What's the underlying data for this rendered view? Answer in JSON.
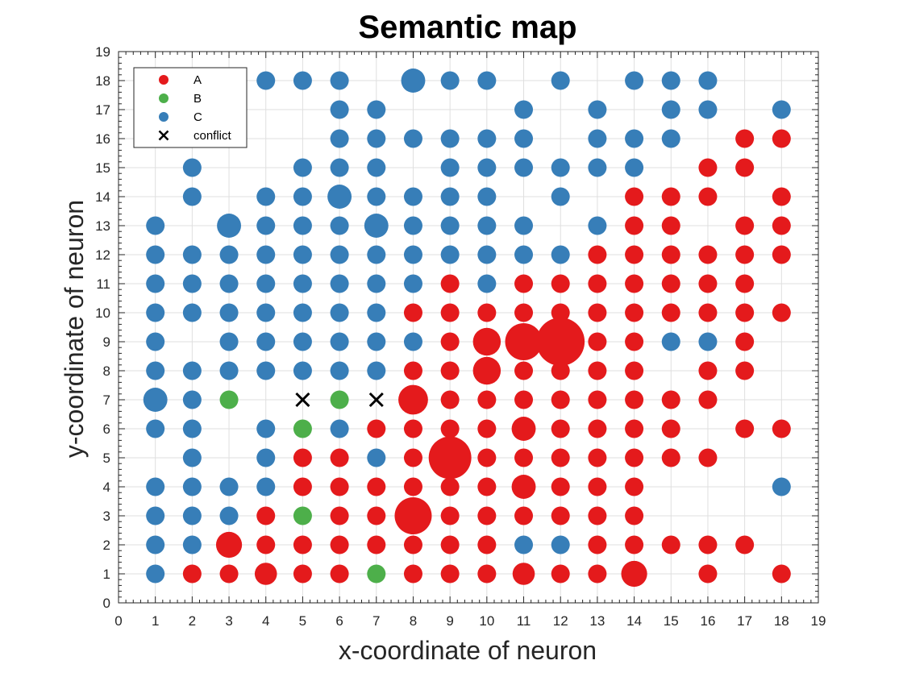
{
  "chart_data": {
    "type": "scatter",
    "title": "Semantic map",
    "xlabel": "x-coordinate of neuron",
    "ylabel": "y-coordinate of neuron",
    "xlim": [
      0,
      19
    ],
    "ylim": [
      0,
      19
    ],
    "xticks": [
      "0",
      "1",
      "2",
      "3",
      "4",
      "5",
      "6",
      "7",
      "8",
      "9",
      "10",
      "11",
      "12",
      "13",
      "14",
      "15",
      "16",
      "17",
      "18",
      "19"
    ],
    "yticks": [
      "0",
      "1",
      "2",
      "3",
      "4",
      "5",
      "6",
      "7",
      "8",
      "9",
      "10",
      "11",
      "12",
      "13",
      "14",
      "15",
      "16",
      "17",
      "18",
      "19"
    ],
    "grid": true,
    "legend_position": "top-left",
    "colors": {
      "A": "#e41a1c",
      "B": "#4daf4a",
      "C": "#377eb8",
      "conflict": "#000000"
    },
    "legend": [
      "A",
      "B",
      "C",
      "conflict"
    ],
    "series": [
      {
        "name": "A",
        "points": [
          [
            17,
            16,
            1
          ],
          [
            18,
            16,
            1
          ],
          [
            16,
            15,
            1
          ],
          [
            17,
            15,
            1
          ],
          [
            14,
            14,
            1
          ],
          [
            15,
            14,
            1
          ],
          [
            16,
            14,
            1
          ],
          [
            18,
            14,
            1
          ],
          [
            14,
            13,
            1
          ],
          [
            15,
            13,
            1
          ],
          [
            17,
            13,
            1
          ],
          [
            18,
            13,
            1
          ],
          [
            13,
            12,
            1
          ],
          [
            14,
            12,
            1
          ],
          [
            15,
            12,
            1
          ],
          [
            16,
            12,
            1
          ],
          [
            17,
            12,
            1
          ],
          [
            18,
            12,
            1
          ],
          [
            9,
            11,
            1
          ],
          [
            11,
            11,
            1
          ],
          [
            12,
            11,
            1
          ],
          [
            13,
            11,
            1
          ],
          [
            14,
            11,
            1
          ],
          [
            15,
            11,
            1
          ],
          [
            16,
            11,
            1
          ],
          [
            17,
            11,
            1
          ],
          [
            8,
            10,
            1
          ],
          [
            9,
            10,
            1
          ],
          [
            10,
            10,
            1
          ],
          [
            11,
            10,
            1
          ],
          [
            12,
            10,
            1
          ],
          [
            13,
            10,
            1
          ],
          [
            14,
            10,
            1
          ],
          [
            15,
            10,
            1
          ],
          [
            16,
            10,
            1
          ],
          [
            17,
            10,
            1
          ],
          [
            18,
            10,
            1
          ],
          [
            9,
            9,
            1
          ],
          [
            10,
            9,
            1.5
          ],
          [
            11,
            9,
            2
          ],
          [
            12,
            9,
            2.6
          ],
          [
            13,
            9,
            1
          ],
          [
            14,
            9,
            1
          ],
          [
            17,
            9,
            1
          ],
          [
            8,
            8,
            1
          ],
          [
            9,
            8,
            1
          ],
          [
            10,
            8,
            1.5
          ],
          [
            11,
            8,
            1
          ],
          [
            12,
            8,
            1
          ],
          [
            13,
            8,
            1
          ],
          [
            14,
            8,
            1
          ],
          [
            16,
            8,
            1
          ],
          [
            17,
            8,
            1
          ],
          [
            8,
            7,
            1.6
          ],
          [
            9,
            7,
            1
          ],
          [
            10,
            7,
            1
          ],
          [
            11,
            7,
            1
          ],
          [
            12,
            7,
            1
          ],
          [
            13,
            7,
            1
          ],
          [
            14,
            7,
            1
          ],
          [
            15,
            7,
            1
          ],
          [
            16,
            7,
            1
          ],
          [
            7,
            6,
            1
          ],
          [
            8,
            6,
            1
          ],
          [
            9,
            6,
            1
          ],
          [
            10,
            6,
            1
          ],
          [
            11,
            6,
            1.3
          ],
          [
            12,
            6,
            1
          ],
          [
            13,
            6,
            1
          ],
          [
            14,
            6,
            1
          ],
          [
            15,
            6,
            1
          ],
          [
            17,
            6,
            1
          ],
          [
            18,
            6,
            1
          ],
          [
            5,
            5,
            1
          ],
          [
            6,
            5,
            1
          ],
          [
            8,
            5,
            1
          ],
          [
            9,
            5,
            2.3
          ],
          [
            10,
            5,
            1
          ],
          [
            11,
            5,
            1
          ],
          [
            12,
            5,
            1
          ],
          [
            13,
            5,
            1
          ],
          [
            14,
            5,
            1
          ],
          [
            15,
            5,
            1
          ],
          [
            16,
            5,
            1
          ],
          [
            5,
            4,
            1
          ],
          [
            6,
            4,
            1
          ],
          [
            7,
            4,
            1
          ],
          [
            8,
            4,
            1
          ],
          [
            9,
            4,
            1
          ],
          [
            10,
            4,
            1
          ],
          [
            11,
            4,
            1.3
          ],
          [
            12,
            4,
            1
          ],
          [
            13,
            4,
            1
          ],
          [
            14,
            4,
            1
          ],
          [
            4,
            3,
            1
          ],
          [
            6,
            3,
            1
          ],
          [
            7,
            3,
            1
          ],
          [
            8,
            3,
            2
          ],
          [
            9,
            3,
            1
          ],
          [
            10,
            3,
            1
          ],
          [
            11,
            3,
            1
          ],
          [
            12,
            3,
            1
          ],
          [
            13,
            3,
            1
          ],
          [
            14,
            3,
            1
          ],
          [
            3,
            2,
            1.4
          ],
          [
            4,
            2,
            1
          ],
          [
            5,
            2,
            1
          ],
          [
            6,
            2,
            1
          ],
          [
            7,
            2,
            1
          ],
          [
            8,
            2,
            1
          ],
          [
            9,
            2,
            1
          ],
          [
            10,
            2,
            1
          ],
          [
            13,
            2,
            1
          ],
          [
            14,
            2,
            1
          ],
          [
            15,
            2,
            1
          ],
          [
            16,
            2,
            1
          ],
          [
            17,
            2,
            1
          ],
          [
            2,
            1,
            1
          ],
          [
            3,
            1,
            1
          ],
          [
            4,
            1,
            1.2
          ],
          [
            5,
            1,
            1
          ],
          [
            6,
            1,
            1
          ],
          [
            8,
            1,
            1
          ],
          [
            9,
            1,
            1
          ],
          [
            10,
            1,
            1
          ],
          [
            11,
            1,
            1.2
          ],
          [
            12,
            1,
            1
          ],
          [
            13,
            1,
            1
          ],
          [
            14,
            1,
            1.4
          ],
          [
            16,
            1,
            1
          ],
          [
            18,
            1,
            1
          ]
        ]
      },
      {
        "name": "B",
        "points": [
          [
            3,
            7,
            1
          ],
          [
            6,
            7,
            1
          ],
          [
            5,
            6,
            1
          ],
          [
            5,
            3,
            1
          ],
          [
            7,
            1,
            1
          ]
        ]
      },
      {
        "name": "C",
        "points": [
          [
            4,
            18,
            1
          ],
          [
            5,
            18,
            1
          ],
          [
            6,
            18,
            1
          ],
          [
            8,
            18,
            1.3
          ],
          [
            9,
            18,
            1
          ],
          [
            10,
            18,
            1
          ],
          [
            12,
            18,
            1
          ],
          [
            14,
            18,
            1
          ],
          [
            15,
            18,
            1
          ],
          [
            16,
            18,
            1
          ],
          [
            6,
            17,
            1
          ],
          [
            7,
            17,
            1
          ],
          [
            11,
            17,
            1
          ],
          [
            13,
            17,
            1
          ],
          [
            15,
            17,
            1
          ],
          [
            16,
            17,
            1
          ],
          [
            18,
            17,
            1
          ],
          [
            6,
            16,
            1
          ],
          [
            7,
            16,
            1
          ],
          [
            8,
            16,
            1
          ],
          [
            9,
            16,
            1
          ],
          [
            10,
            16,
            1
          ],
          [
            11,
            16,
            1
          ],
          [
            13,
            16,
            1
          ],
          [
            14,
            16,
            1
          ],
          [
            15,
            16,
            1
          ],
          [
            2,
            15,
            1
          ],
          [
            5,
            15,
            1
          ],
          [
            6,
            15,
            1
          ],
          [
            7,
            15,
            1
          ],
          [
            9,
            15,
            1
          ],
          [
            10,
            15,
            1
          ],
          [
            11,
            15,
            1
          ],
          [
            12,
            15,
            1
          ],
          [
            13,
            15,
            1
          ],
          [
            14,
            15,
            1
          ],
          [
            2,
            14,
            1
          ],
          [
            4,
            14,
            1
          ],
          [
            5,
            14,
            1
          ],
          [
            6,
            14,
            1.3
          ],
          [
            7,
            14,
            1
          ],
          [
            8,
            14,
            1
          ],
          [
            9,
            14,
            1
          ],
          [
            10,
            14,
            1
          ],
          [
            12,
            14,
            1
          ],
          [
            1,
            13,
            1
          ],
          [
            3,
            13,
            1.3
          ],
          [
            4,
            13,
            1
          ],
          [
            5,
            13,
            1
          ],
          [
            6,
            13,
            1
          ],
          [
            7,
            13,
            1.3
          ],
          [
            8,
            13,
            1
          ],
          [
            9,
            13,
            1
          ],
          [
            10,
            13,
            1
          ],
          [
            11,
            13,
            1
          ],
          [
            13,
            13,
            1
          ],
          [
            1,
            12,
            1
          ],
          [
            2,
            12,
            1
          ],
          [
            3,
            12,
            1
          ],
          [
            4,
            12,
            1
          ],
          [
            5,
            12,
            1
          ],
          [
            6,
            12,
            1
          ],
          [
            7,
            12,
            1
          ],
          [
            8,
            12,
            1
          ],
          [
            9,
            12,
            1
          ],
          [
            10,
            12,
            1
          ],
          [
            11,
            12,
            1
          ],
          [
            12,
            12,
            1
          ],
          [
            1,
            11,
            1
          ],
          [
            2,
            11,
            1
          ],
          [
            3,
            11,
            1
          ],
          [
            4,
            11,
            1
          ],
          [
            5,
            11,
            1
          ],
          [
            6,
            11,
            1
          ],
          [
            7,
            11,
            1
          ],
          [
            8,
            11,
            1
          ],
          [
            10,
            11,
            1
          ],
          [
            1,
            10,
            1
          ],
          [
            2,
            10,
            1
          ],
          [
            3,
            10,
            1
          ],
          [
            4,
            10,
            1
          ],
          [
            5,
            10,
            1
          ],
          [
            6,
            10,
            1
          ],
          [
            7,
            10,
            1
          ],
          [
            1,
            9,
            1
          ],
          [
            3,
            9,
            1
          ],
          [
            4,
            9,
            1
          ],
          [
            5,
            9,
            1
          ],
          [
            6,
            9,
            1
          ],
          [
            7,
            9,
            1
          ],
          [
            8,
            9,
            1
          ],
          [
            15,
            9,
            1
          ],
          [
            16,
            9,
            1
          ],
          [
            1,
            8,
            1
          ],
          [
            2,
            8,
            1
          ],
          [
            3,
            8,
            1
          ],
          [
            4,
            8,
            1
          ],
          [
            5,
            8,
            1
          ],
          [
            6,
            8,
            1
          ],
          [
            7,
            8,
            1
          ],
          [
            1,
            7,
            1.3
          ],
          [
            2,
            7,
            1
          ],
          [
            1,
            6,
            1
          ],
          [
            2,
            6,
            1
          ],
          [
            4,
            6,
            1
          ],
          [
            6,
            6,
            1
          ],
          [
            2,
            5,
            1
          ],
          [
            4,
            5,
            1
          ],
          [
            7,
            5,
            1
          ],
          [
            1,
            4,
            1
          ],
          [
            2,
            4,
            1
          ],
          [
            3,
            4,
            1
          ],
          [
            4,
            4,
            1
          ],
          [
            18,
            4,
            1
          ],
          [
            1,
            3,
            1
          ],
          [
            2,
            3,
            1
          ],
          [
            3,
            3,
            1
          ],
          [
            1,
            2,
            1
          ],
          [
            2,
            2,
            1
          ],
          [
            11,
            2,
            1
          ],
          [
            12,
            2,
            1
          ],
          [
            1,
            1,
            1
          ]
        ]
      },
      {
        "name": "conflict",
        "marker": "x",
        "points": [
          [
            5,
            7,
            1
          ],
          [
            7,
            7,
            1
          ]
        ]
      }
    ]
  }
}
